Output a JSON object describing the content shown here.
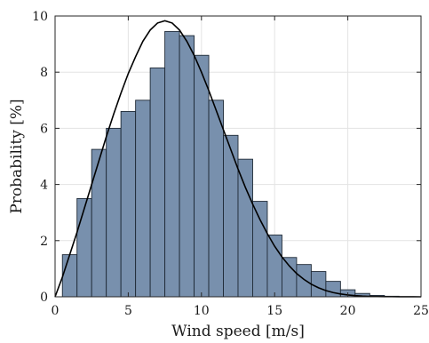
{
  "chart_data": {
    "type": "bar",
    "xlabel": "Wind speed [m/s]",
    "ylabel": "Probability [%]",
    "xlim": [
      0,
      25
    ],
    "ylim": [
      0,
      10
    ],
    "xticks": [
      0,
      5,
      10,
      15,
      20,
      25
    ],
    "yticks": [
      0,
      2,
      4,
      6,
      8,
      10
    ],
    "grid": true,
    "bin_width": 1,
    "bins": [
      {
        "x0": 0.5,
        "x1": 1.5,
        "value": 1.5
      },
      {
        "x0": 1.5,
        "x1": 2.5,
        "value": 3.5
      },
      {
        "x0": 2.5,
        "x1": 3.5,
        "value": 5.25
      },
      {
        "x0": 3.5,
        "x1": 4.5,
        "value": 6.0
      },
      {
        "x0": 4.5,
        "x1": 5.5,
        "value": 6.6
      },
      {
        "x0": 5.5,
        "x1": 6.5,
        "value": 7.0
      },
      {
        "x0": 6.5,
        "x1": 7.5,
        "value": 8.15
      },
      {
        "x0": 7.5,
        "x1": 8.5,
        "value": 9.45
      },
      {
        "x0": 8.5,
        "x1": 9.5,
        "value": 9.3
      },
      {
        "x0": 9.5,
        "x1": 10.5,
        "value": 8.6
      },
      {
        "x0": 10.5,
        "x1": 11.5,
        "value": 7.0
      },
      {
        "x0": 11.5,
        "x1": 12.5,
        "value": 5.75
      },
      {
        "x0": 12.5,
        "x1": 13.5,
        "value": 4.9
      },
      {
        "x0": 13.5,
        "x1": 14.5,
        "value": 3.4
      },
      {
        "x0": 14.5,
        "x1": 15.5,
        "value": 2.2
      },
      {
        "x0": 15.5,
        "x1": 16.5,
        "value": 1.4
      },
      {
        "x0": 16.5,
        "x1": 17.5,
        "value": 1.15
      },
      {
        "x0": 17.5,
        "x1": 18.5,
        "value": 0.9
      },
      {
        "x0": 18.5,
        "x1": 19.5,
        "value": 0.55
      },
      {
        "x0": 19.5,
        "x1": 20.5,
        "value": 0.25
      },
      {
        "x0": 20.5,
        "x1": 21.5,
        "value": 0.12
      },
      {
        "x0": 21.5,
        "x1": 22.5,
        "value": 0.05
      },
      {
        "x0": 22.5,
        "x1": 23.5,
        "value": 0.02
      }
    ],
    "curve": {
      "x": [
        0.0,
        0.5,
        1.0,
        1.5,
        2.0,
        2.5,
        3.0,
        3.5,
        4.0,
        4.5,
        5.0,
        5.5,
        6.0,
        6.5,
        7.0,
        7.5,
        8.0,
        8.5,
        9.0,
        9.5,
        10.0,
        10.5,
        11.0,
        11.5,
        12.0,
        12.5,
        13.0,
        13.5,
        14.0,
        14.5,
        15.0,
        15.5,
        16.0,
        16.5,
        17.0,
        17.5,
        18.0,
        18.5,
        19.0,
        19.5,
        20.0,
        20.5,
        21.0,
        21.5,
        22.0,
        22.5,
        23.0,
        23.5,
        24.0,
        24.5,
        25.0
      ],
      "y": [
        0.0,
        0.7,
        1.5,
        2.3,
        3.15,
        4.0,
        4.85,
        5.7,
        6.5,
        7.25,
        7.95,
        8.55,
        9.1,
        9.5,
        9.75,
        9.83,
        9.75,
        9.5,
        9.1,
        8.6,
        8.0,
        7.35,
        6.65,
        5.95,
        5.25,
        4.55,
        3.9,
        3.3,
        2.75,
        2.25,
        1.8,
        1.42,
        1.1,
        0.83,
        0.62,
        0.45,
        0.32,
        0.22,
        0.15,
        0.1,
        0.065,
        0.042,
        0.026,
        0.016,
        0.01,
        0.006,
        0.004,
        0.002,
        0.001,
        0.0005,
        0.0
      ]
    },
    "colors": {
      "bar_fill": "#7890ad",
      "bar_edge": "#1f2a36",
      "curve": "#000000",
      "grid": "#e3e3e3",
      "axes": "#262626"
    }
  }
}
